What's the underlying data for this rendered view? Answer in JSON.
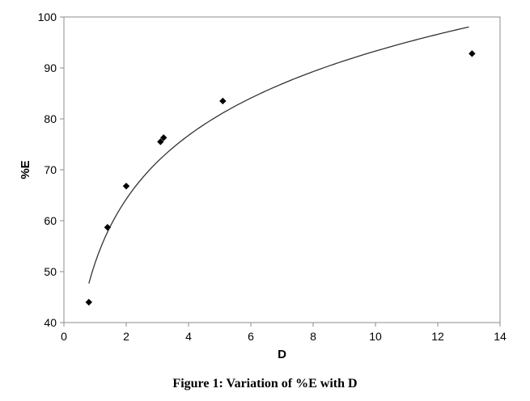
{
  "chart_data": {
    "type": "scatter",
    "title": "",
    "xlabel": "D",
    "ylabel": "%E",
    "xlim": [
      0,
      14
    ],
    "ylim": [
      40,
      100
    ],
    "x_ticks": [
      "0",
      "2",
      "4",
      "6",
      "8",
      "10",
      "12",
      "14"
    ],
    "y_ticks": [
      "40",
      "50",
      "60",
      "70",
      "80",
      "90",
      "100"
    ],
    "grid": false,
    "legend": "none",
    "series": [
      {
        "points": [
          {
            "x": 0.8,
            "y": 44.0
          },
          {
            "x": 1.4,
            "y": 58.7
          },
          {
            "x": 2.0,
            "y": 66.8
          },
          {
            "x": 3.1,
            "y": 75.5
          },
          {
            "x": 3.2,
            "y": 76.3
          },
          {
            "x": 5.1,
            "y": 83.5
          },
          {
            "x": 13.1,
            "y": 92.8
          }
        ],
        "marker": "diamond",
        "color": "#000000"
      }
    ],
    "trendline": {
      "type": "logarithmic",
      "equation": "y = 18.064 ln(x) + 51.71",
      "x_range": [
        0.8,
        13.0
      ],
      "color": "#333333"
    }
  },
  "caption": "Figure 1: Variation of %E with D"
}
